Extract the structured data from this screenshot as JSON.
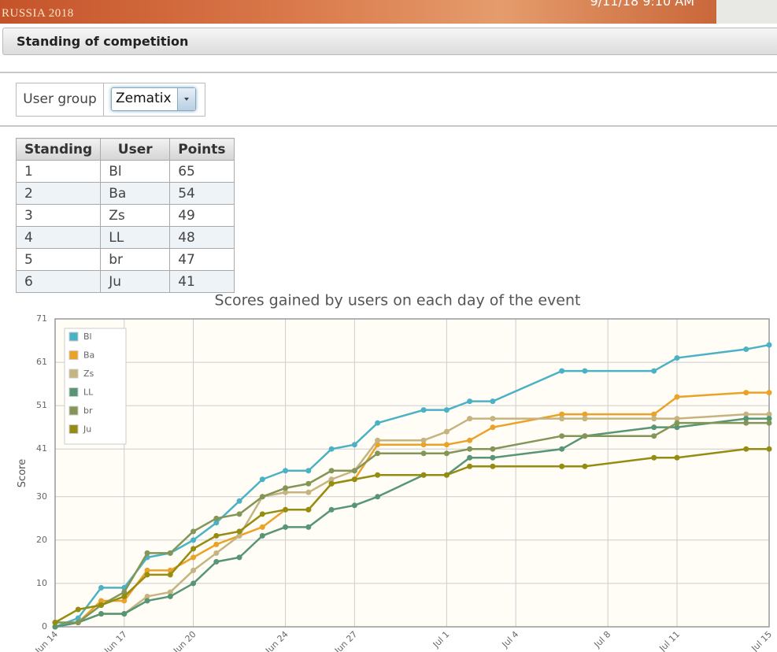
{
  "header": {
    "logo": "RUSSIA 2018",
    "datetime": "9/11/18 9:10 AM"
  },
  "panel_title": "Standing of competition",
  "user_group": {
    "label": "User group",
    "value": "Zematix"
  },
  "table": {
    "columns": [
      "Standing",
      "User",
      "Points"
    ],
    "rows": [
      [
        1,
        "Bl",
        65
      ],
      [
        2,
        "Ba",
        54
      ],
      [
        3,
        "Zs",
        49
      ],
      [
        4,
        "LL",
        48
      ],
      [
        5,
        "br",
        47
      ],
      [
        6,
        "Ju",
        41
      ]
    ]
  },
  "chart_data": {
    "type": "line",
    "title": "Scores gained by users on each day of the event",
    "y_label": "Score",
    "x": [
      "Jun 14",
      "Jun 15",
      "Jun 16",
      "Jun 17",
      "Jun 18",
      "Jun 19",
      "Jun 20",
      "Jun 21",
      "Jun 22",
      "Jun 23",
      "Jun 24",
      "Jun 25",
      "Jun 26",
      "Jun 27",
      "Jun 28",
      "Jun 30",
      "Jul 1",
      "Jul 2",
      "Jul 3",
      "Jul 6",
      "Jul 7",
      "Jul 10",
      "Jul 11",
      "Jul 14",
      "Jul 15"
    ],
    "xlim": [
      "Jun 14",
      "Jul 15"
    ],
    "xticks": [
      "Jun 14",
      "Jun 17",
      "Jun 20",
      "Jun 24",
      "Jun 27",
      "Jul 1",
      "Jul 4",
      "Jul 8",
      "Jul 11",
      "Jul 15"
    ],
    "ylim": [
      0,
      71
    ],
    "yticks": [
      0,
      10,
      20,
      30,
      41,
      51,
      61,
      71
    ],
    "grid": true,
    "legend": "top-left",
    "series": [
      {
        "name": "Bl",
        "color": "#4bb2c5",
        "values": [
          0,
          2,
          9,
          9,
          16,
          17,
          20,
          24,
          29,
          34,
          36,
          36,
          41,
          42,
          47,
          50,
          50,
          52,
          52,
          59,
          59,
          59,
          62,
          64,
          65
        ]
      },
      {
        "name": "Ba",
        "color": "#eaa228",
        "values": [
          0,
          1,
          6,
          6,
          13,
          13,
          16,
          19,
          21,
          23,
          27,
          27,
          33,
          34,
          42,
          42,
          42,
          43,
          46,
          49,
          49,
          49,
          53,
          54,
          54
        ]
      },
      {
        "name": "Zs",
        "color": "#c5b47f",
        "values": [
          0,
          1,
          3,
          3,
          7,
          8,
          13,
          17,
          21,
          30,
          31,
          31,
          34,
          36,
          43,
          43,
          45,
          48,
          48,
          48,
          48,
          48,
          48,
          49,
          49
        ]
      },
      {
        "name": "LL",
        "color": "#579575",
        "values": [
          0,
          1,
          3,
          3,
          6,
          7,
          10,
          15,
          16,
          21,
          23,
          23,
          27,
          28,
          30,
          35,
          35,
          39,
          39,
          41,
          44,
          46,
          46,
          48,
          48
        ]
      },
      {
        "name": "br",
        "color": "#839557",
        "values": [
          1,
          1,
          5,
          8,
          17,
          17,
          22,
          25,
          26,
          30,
          32,
          33,
          36,
          36,
          40,
          40,
          40,
          41,
          41,
          44,
          44,
          44,
          47,
          47,
          47
        ]
      },
      {
        "name": "Ju",
        "color": "#958c12",
        "values": [
          1,
          4,
          5,
          7,
          12,
          12,
          18,
          21,
          22,
          26,
          27,
          27,
          33,
          34,
          35,
          35,
          35,
          37,
          37,
          37,
          37,
          39,
          39,
          41,
          41
        ]
      }
    ]
  }
}
